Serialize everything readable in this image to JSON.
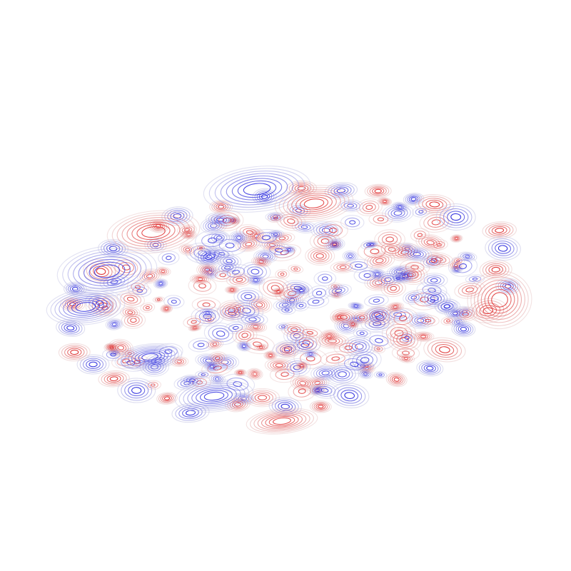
{
  "figure": {
    "kind": "3d-contour-wave-field",
    "axes_visible": false,
    "background": "#ffffff",
    "colormap": [
      "#2222dd",
      "#c8c8e6",
      "#e8c8c8",
      "#dd2222"
    ]
  }
}
